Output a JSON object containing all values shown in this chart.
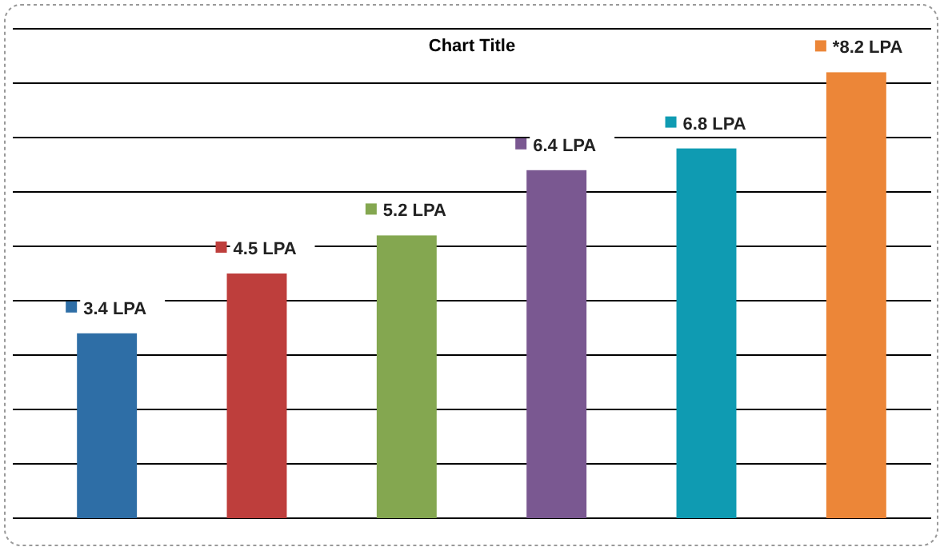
{
  "chart_data": {
    "type": "bar",
    "title": "Chart Title",
    "categories": [
      null,
      null,
      null,
      null,
      null,
      null
    ],
    "values": [
      3.4,
      4.5,
      5.2,
      6.4,
      6.8,
      8.2
    ],
    "colors": [
      "#2e6ea6",
      "#be3e3c",
      "#84a750",
      "#7a5891",
      "#0f9bb2",
      "#ec8638"
    ],
    "value_labels": [
      "3.4 LPA",
      "4.5 LPA",
      "5.2 LPA",
      "6.4 LPA",
      "6.8 LPA",
      "*8.2 LPA"
    ],
    "ylim": [
      0,
      9
    ],
    "yticks": [
      {
        "value": 0,
        "label": null
      },
      {
        "value": 1,
        "label": null
      },
      {
        "value": 2,
        "label": null
      },
      {
        "value": 3,
        "label": null
      },
      {
        "value": 4,
        "label": null
      },
      {
        "value": 5,
        "label": null
      },
      {
        "value": 6,
        "label": null
      },
      {
        "value": 7,
        "label": null
      },
      {
        "value": 8,
        "label": null
      },
      {
        "value": 9,
        "label": null
      }
    ],
    "grid": "y"
  }
}
